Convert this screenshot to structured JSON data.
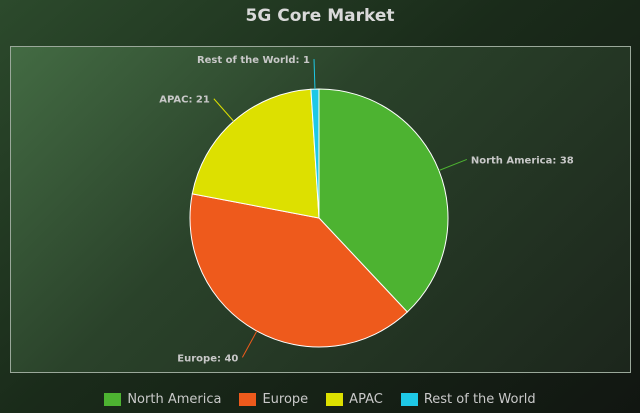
{
  "chart_data": {
    "type": "pie",
    "title": "5G Core Market",
    "slices": [
      {
        "label": "North America",
        "value": 38,
        "color": "#4db331",
        "callout": "North America: 38"
      },
      {
        "label": "Europe",
        "value": 40,
        "color": "#ee5a1c",
        "callout": "Europe: 40"
      },
      {
        "label": "APAC",
        "value": 21,
        "color": "#dde000",
        "callout": "APAC: 21"
      },
      {
        "label": "Rest of the World",
        "value": 1,
        "color": "#1ec8e6",
        "callout": "Rest of the World: 1"
      }
    ],
    "legend_placement": "bottom"
  }
}
